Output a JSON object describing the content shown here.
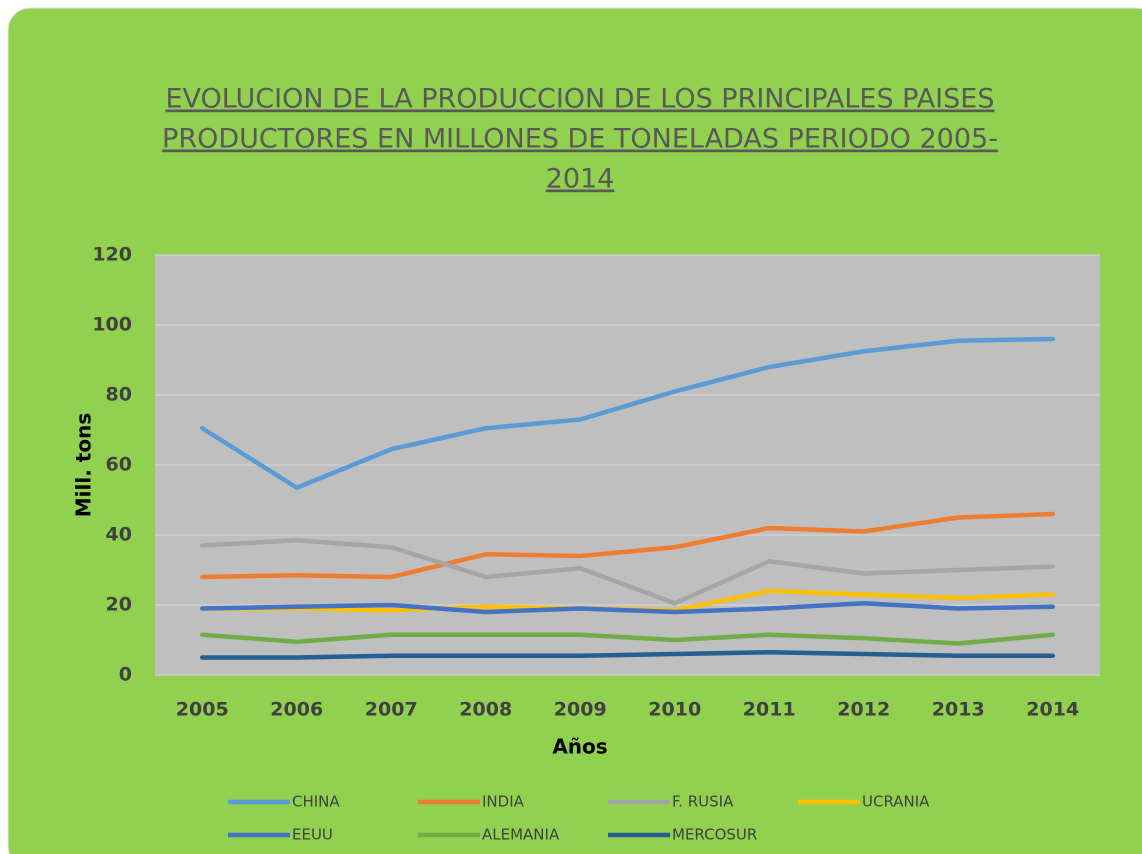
{
  "chart_data": {
    "type": "line",
    "title": [
      "EVOLUCION DE LA PRODUCCION DE LOS PRINCIPALES PAISES",
      "PRODUCTORES EN MILLONES DE TONELADAS  PERIODO 2005-",
      "2014"
    ],
    "x_label": "Años",
    "y_label": "Mill. tons",
    "categories": [
      "2005",
      "2006",
      "2007",
      "2008",
      "2009",
      "2010",
      "2011",
      "2012",
      "2013",
      "2014"
    ],
    "ylim": [
      0,
      120
    ],
    "yticks": [
      0,
      20,
      40,
      60,
      80,
      100,
      120
    ],
    "grid": true,
    "series": [
      {
        "name": "CHINA",
        "color": "#5b9bd5",
        "values": [
          70.5,
          53.5,
          64.5,
          70.5,
          73,
          81,
          88,
          92.5,
          95.5,
          96
        ]
      },
      {
        "name": "INDIA",
        "color": "#ed7d31",
        "values": [
          28,
          28.5,
          28,
          34.5,
          34,
          36.5,
          42,
          41,
          45,
          46
        ]
      },
      {
        "name": "F. RUSIA",
        "color": "#a5a5a5",
        "values": [
          37,
          38.5,
          36.5,
          28,
          30.5,
          20.5,
          32.5,
          29,
          30,
          31
        ]
      },
      {
        "name": "UCRANIA",
        "color": "#ffc000",
        "values": [
          19,
          19,
          18.5,
          19.5,
          19,
          18.5,
          24,
          23,
          22,
          23
        ]
      },
      {
        "name": "EEUU",
        "color": "#4472c4",
        "values": [
          19,
          19.5,
          20,
          18,
          19,
          18,
          19,
          20.5,
          19,
          19.5
        ]
      },
      {
        "name": "ALEMANIA",
        "color": "#70ad47",
        "values": [
          11.5,
          9.5,
          11.5,
          11.5,
          11.5,
          10,
          11.5,
          10.5,
          9,
          11.5
        ]
      },
      {
        "name": "MERCOSUR",
        "color": "#255e91",
        "values": [
          5,
          5,
          5.5,
          5.5,
          5.5,
          6,
          6.5,
          6,
          5.5,
          5.5
        ]
      }
    ]
  }
}
